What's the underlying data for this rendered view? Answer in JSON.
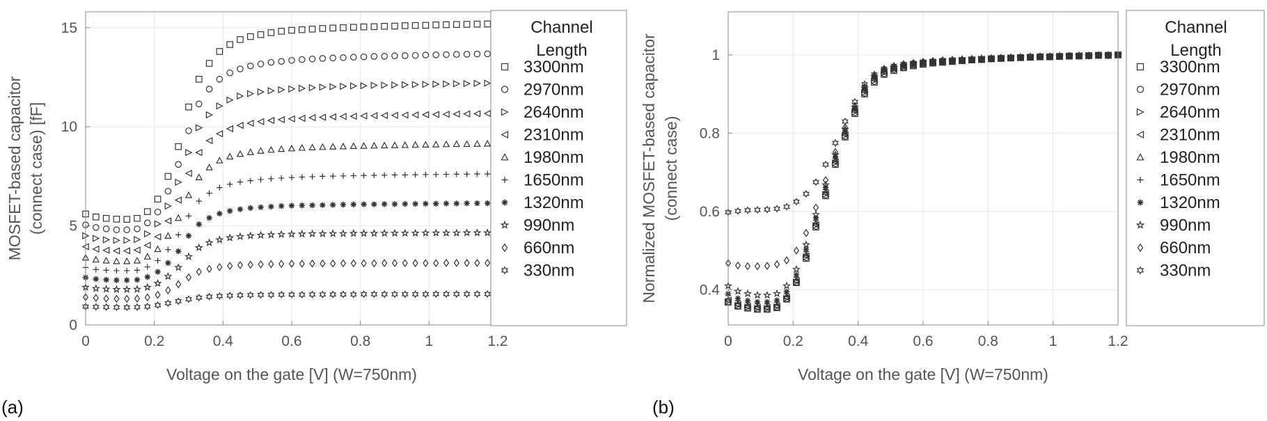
{
  "panels": [
    {
      "label": "(a)"
    },
    {
      "label": "(b)"
    }
  ],
  "legend": {
    "title_line1": "Channel",
    "title_line2": "Length",
    "markers": [
      "square",
      "circle",
      "triangle-right",
      "triangle-left",
      "triangle-up",
      "plus",
      "asterisk",
      "star",
      "diamond",
      "hexagram"
    ]
  },
  "colors": {
    "marker": "#333333",
    "grid": "#e6e6e6",
    "axis": "#888888",
    "text": "#555555"
  },
  "chart_data": [
    {
      "type": "scatter",
      "xlabel": "Voltage on the gate [V] (W=750nm)",
      "ylabel_line1": "MOSFET-based capacitor",
      "ylabel_line2": "(connect case) [fF]",
      "xlim": [
        0,
        1.2
      ],
      "ylim": [
        0,
        15.8
      ],
      "xticks": [
        "0",
        "0.2",
        "0.4",
        "0.6",
        "0.8",
        "1",
        "1.2"
      ],
      "yticks": [
        "0",
        "5",
        "10",
        "15"
      ],
      "xtick_values": [
        0,
        0.2,
        0.4,
        0.6,
        0.8,
        1,
        1.2
      ],
      "ytick_values": [
        0,
        5,
        10,
        15
      ],
      "grid": true,
      "legend_position": "right",
      "x": [
        0,
        0.03,
        0.06,
        0.09,
        0.12,
        0.15,
        0.18,
        0.21,
        0.24,
        0.27,
        0.3,
        0.33,
        0.36,
        0.39,
        0.42,
        0.45,
        0.48,
        0.51,
        0.54,
        0.57,
        0.6,
        0.63,
        0.66,
        0.69,
        0.72,
        0.75,
        0.78,
        0.81,
        0.84,
        0.87,
        0.9,
        0.93,
        0.96,
        0.99,
        1.02,
        1.05,
        1.08,
        1.11,
        1.14,
        1.17,
        1.2
      ],
      "series": [
        {
          "name": "3300nm",
          "values": [
            5.6,
            5.45,
            5.38,
            5.34,
            5.33,
            5.38,
            5.72,
            6.35,
            7.5,
            9.0,
            11.0,
            12.4,
            13.2,
            13.8,
            14.15,
            14.4,
            14.55,
            14.65,
            14.75,
            14.82,
            14.87,
            14.9,
            14.93,
            14.96,
            14.98,
            15.0,
            15.02,
            15.04,
            15.05,
            15.07,
            15.08,
            15.1,
            15.11,
            15.12,
            15.14,
            15.15,
            15.16,
            15.17,
            15.18,
            15.19,
            15.2
          ]
        },
        {
          "name": "2970nm",
          "values": [
            5.05,
            4.92,
            4.85,
            4.8,
            4.8,
            4.85,
            5.15,
            5.7,
            6.75,
            8.1,
            9.8,
            11.15,
            11.9,
            12.4,
            12.72,
            12.92,
            13.07,
            13.17,
            13.25,
            13.3,
            13.35,
            13.39,
            13.42,
            13.45,
            13.47,
            13.49,
            13.51,
            13.53,
            13.55,
            13.56,
            13.58,
            13.59,
            13.6,
            13.62,
            13.63,
            13.64,
            13.65,
            13.66,
            13.67,
            13.68,
            13.7
          ]
        },
        {
          "name": "2640nm",
          "values": [
            4.5,
            4.37,
            4.3,
            4.27,
            4.27,
            4.31,
            4.6,
            5.1,
            6.0,
            7.2,
            8.7,
            9.95,
            10.6,
            11.05,
            11.35,
            11.55,
            11.67,
            11.76,
            11.82,
            11.87,
            11.91,
            11.94,
            11.97,
            12.0,
            12.02,
            12.04,
            12.06,
            12.07,
            12.09,
            12.1,
            12.11,
            12.12,
            12.13,
            12.14,
            12.15,
            12.16,
            12.17,
            12.18,
            12.19,
            12.2,
            12.2
          ]
        },
        {
          "name": "2310nm",
          "values": [
            3.95,
            3.83,
            3.77,
            3.74,
            3.74,
            3.78,
            4.02,
            4.45,
            5.25,
            6.3,
            7.65,
            8.7,
            9.3,
            9.65,
            9.9,
            10.07,
            10.18,
            10.26,
            10.32,
            10.36,
            10.4,
            10.43,
            10.46,
            10.48,
            10.5,
            10.52,
            10.53,
            10.55,
            10.56,
            10.57,
            10.58,
            10.59,
            10.6,
            10.61,
            10.62,
            10.63,
            10.64,
            10.65,
            10.66,
            10.67,
            10.68
          ]
        },
        {
          "name": "1980nm",
          "values": [
            3.4,
            3.3,
            3.25,
            3.22,
            3.22,
            3.25,
            3.45,
            3.83,
            4.5,
            5.4,
            6.55,
            7.45,
            7.95,
            8.3,
            8.5,
            8.63,
            8.72,
            8.79,
            8.84,
            8.88,
            8.91,
            8.94,
            8.96,
            8.98,
            9.0,
            9.01,
            9.03,
            9.04,
            9.05,
            9.06,
            9.07,
            9.08,
            9.09,
            9.1,
            9.11,
            9.12,
            9.13,
            9.13,
            9.14,
            9.15,
            9.15
          ]
        },
        {
          "name": "1650nm",
          "values": [
            2.9,
            2.8,
            2.76,
            2.74,
            2.74,
            2.76,
            2.93,
            3.25,
            3.8,
            4.55,
            5.5,
            6.25,
            6.65,
            6.93,
            7.1,
            7.21,
            7.28,
            7.34,
            7.38,
            7.41,
            7.44,
            7.46,
            7.48,
            7.5,
            7.51,
            7.52,
            7.53,
            7.54,
            7.55,
            7.56,
            7.57,
            7.57,
            7.58,
            7.59,
            7.59,
            7.6,
            7.61,
            7.61,
            7.62,
            7.62,
            7.63
          ]
        },
        {
          "name": "1320nm",
          "values": [
            2.4,
            2.32,
            2.28,
            2.26,
            2.26,
            2.28,
            2.42,
            2.68,
            3.13,
            3.72,
            4.5,
            5.08,
            5.4,
            5.62,
            5.75,
            5.84,
            5.9,
            5.94,
            5.97,
            6.0,
            6.02,
            6.03,
            6.04,
            6.05,
            6.06,
            6.07,
            6.08,
            6.09,
            6.09,
            6.1,
            6.1,
            6.11,
            6.11,
            6.12,
            6.12,
            6.13,
            6.13,
            6.14,
            6.14,
            6.14,
            6.15
          ]
        },
        {
          "name": "990nm",
          "values": [
            1.9,
            1.84,
            1.81,
            1.79,
            1.79,
            1.8,
            1.9,
            2.1,
            2.45,
            2.9,
            3.45,
            3.9,
            4.15,
            4.3,
            4.4,
            4.46,
            4.5,
            4.53,
            4.55,
            4.57,
            4.58,
            4.59,
            4.6,
            4.6,
            4.61,
            4.61,
            4.62,
            4.62,
            4.62,
            4.63,
            4.63,
            4.63,
            4.63,
            4.64,
            4.64,
            4.64,
            4.64,
            4.65,
            4.65,
            4.65,
            4.65
          ]
        },
        {
          "name": "660nm",
          "values": [
            1.4,
            1.36,
            1.33,
            1.32,
            1.32,
            1.33,
            1.39,
            1.52,
            1.75,
            2.05,
            2.4,
            2.68,
            2.83,
            2.92,
            2.98,
            3.02,
            3.04,
            3.06,
            3.07,
            3.08,
            3.09,
            3.09,
            3.1,
            3.1,
            3.1,
            3.11,
            3.11,
            3.11,
            3.11,
            3.12,
            3.12,
            3.12,
            3.12,
            3.12,
            3.12,
            3.13,
            3.13,
            3.13,
            3.13,
            3.13,
            3.13
          ]
        },
        {
          "name": "330nm",
          "values": [
            0.93,
            0.91,
            0.9,
            0.89,
            0.89,
            0.9,
            0.93,
            1.0,
            1.1,
            1.2,
            1.3,
            1.38,
            1.43,
            1.46,
            1.48,
            1.5,
            1.51,
            1.52,
            1.52,
            1.53,
            1.53,
            1.53,
            1.54,
            1.54,
            1.54,
            1.54,
            1.54,
            1.55,
            1.55,
            1.55,
            1.55,
            1.55,
            1.55,
            1.55,
            1.56,
            1.56,
            1.56,
            1.56,
            1.56,
            1.56,
            1.56
          ]
        }
      ]
    },
    {
      "type": "scatter",
      "xlabel": "Voltage on the gate [V] (W=750nm)",
      "ylabel_line1": "Normalized MOSFET-based capacitor",
      "ylabel_line2": "(connect case)",
      "xlim": [
        0,
        1.2
      ],
      "ylim": [
        0.31,
        1.11
      ],
      "xticks": [
        "0",
        "0.2",
        "0.4",
        "0.6",
        "0.8",
        "1",
        "1.2"
      ],
      "yticks": [
        "0.4",
        "0.6",
        "0.8",
        "1"
      ],
      "xtick_values": [
        0,
        0.2,
        0.4,
        0.6,
        0.8,
        1,
        1.2
      ],
      "ytick_values": [
        0.4,
        0.6,
        0.8,
        1
      ],
      "grid": true,
      "legend_position": "right",
      "x": [
        0,
        0.03,
        0.06,
        0.09,
        0.12,
        0.15,
        0.18,
        0.21,
        0.24,
        0.27,
        0.3,
        0.33,
        0.36,
        0.39,
        0.42,
        0.45,
        0.48,
        0.51,
        0.54,
        0.57,
        0.6,
        0.63,
        0.66,
        0.69,
        0.72,
        0.75,
        0.78,
        0.81,
        0.84,
        0.87,
        0.9,
        0.93,
        0.96,
        0.99,
        1.02,
        1.05,
        1.08,
        1.11,
        1.14,
        1.17,
        1.2
      ],
      "series": [
        {
          "name": "3300nm",
          "values": [
            0.368,
            0.358,
            0.353,
            0.35,
            0.35,
            0.354,
            0.376,
            0.418,
            0.48,
            0.56,
            0.64,
            0.72,
            0.79,
            0.85,
            0.9,
            0.93,
            0.95,
            0.96,
            0.967,
            0.972,
            0.976,
            0.979,
            0.981,
            0.983,
            0.985,
            0.987,
            0.988,
            0.99,
            0.991,
            0.992,
            0.993,
            0.994,
            0.995,
            0.995,
            0.996,
            0.997,
            0.997,
            0.998,
            0.999,
            0.999,
            1.0
          ]
        },
        {
          "name": "2970nm",
          "values": [
            0.369,
            0.359,
            0.354,
            0.351,
            0.351,
            0.355,
            0.377,
            0.419,
            0.482,
            0.562,
            0.642,
            0.722,
            0.792,
            0.852,
            0.902,
            0.932,
            0.952,
            0.962,
            0.968,
            0.973,
            0.977,
            0.98,
            0.982,
            0.984,
            0.986,
            0.987,
            0.989,
            0.99,
            0.991,
            0.992,
            0.993,
            0.994,
            0.995,
            0.995,
            0.996,
            0.997,
            0.997,
            0.998,
            0.999,
            0.999,
            1.0
          ]
        },
        {
          "name": "2640nm",
          "values": [
            0.37,
            0.36,
            0.355,
            0.352,
            0.352,
            0.356,
            0.378,
            0.42,
            0.484,
            0.564,
            0.644,
            0.724,
            0.794,
            0.854,
            0.904,
            0.934,
            0.954,
            0.963,
            0.969,
            0.974,
            0.977,
            0.98,
            0.982,
            0.984,
            0.986,
            0.987,
            0.989,
            0.99,
            0.991,
            0.992,
            0.993,
            0.994,
            0.995,
            0.995,
            0.996,
            0.997,
            0.997,
            0.998,
            0.999,
            0.999,
            1.0
          ]
        },
        {
          "name": "2310nm",
          "values": [
            0.373,
            0.362,
            0.357,
            0.354,
            0.354,
            0.358,
            0.38,
            0.422,
            0.486,
            0.566,
            0.646,
            0.726,
            0.796,
            0.856,
            0.906,
            0.936,
            0.956,
            0.964,
            0.97,
            0.974,
            0.978,
            0.981,
            0.983,
            0.985,
            0.986,
            0.988,
            0.989,
            0.99,
            0.991,
            0.992,
            0.993,
            0.994,
            0.995,
            0.996,
            0.996,
            0.997,
            0.998,
            0.998,
            0.999,
            0.999,
            1.0
          ]
        },
        {
          "name": "1980nm",
          "values": [
            0.375,
            0.365,
            0.36,
            0.357,
            0.357,
            0.361,
            0.383,
            0.425,
            0.49,
            0.57,
            0.65,
            0.73,
            0.8,
            0.86,
            0.91,
            0.94,
            0.958,
            0.966,
            0.971,
            0.975,
            0.979,
            0.981,
            0.983,
            0.985,
            0.987,
            0.988,
            0.989,
            0.991,
            0.992,
            0.993,
            0.993,
            0.994,
            0.995,
            0.996,
            0.996,
            0.997,
            0.998,
            0.998,
            0.999,
            0.999,
            1.0
          ]
        },
        {
          "name": "1650nm",
          "values": [
            0.385,
            0.372,
            0.367,
            0.364,
            0.364,
            0.368,
            0.39,
            0.432,
            0.497,
            0.577,
            0.656,
            0.735,
            0.803,
            0.862,
            0.911,
            0.941,
            0.959,
            0.967,
            0.972,
            0.976,
            0.979,
            0.982,
            0.984,
            0.985,
            0.987,
            0.988,
            0.99,
            0.991,
            0.992,
            0.993,
            0.994,
            0.994,
            0.995,
            0.996,
            0.996,
            0.997,
            0.998,
            0.998,
            0.999,
            0.999,
            1.0
          ]
        },
        {
          "name": "1320nm",
          "values": [
            0.39,
            0.378,
            0.372,
            0.369,
            0.369,
            0.373,
            0.395,
            0.438,
            0.503,
            0.583,
            0.662,
            0.74,
            0.807,
            0.864,
            0.913,
            0.943,
            0.96,
            0.968,
            0.973,
            0.977,
            0.98,
            0.982,
            0.984,
            0.986,
            0.987,
            0.989,
            0.99,
            0.991,
            0.992,
            0.993,
            0.994,
            0.995,
            0.995,
            0.996,
            0.997,
            0.997,
            0.998,
            0.998,
            0.999,
            0.999,
            1.0
          ]
        },
        {
          "name": "990nm",
          "values": [
            0.41,
            0.396,
            0.39,
            0.386,
            0.386,
            0.39,
            0.41,
            0.452,
            0.515,
            0.592,
            0.668,
            0.745,
            0.81,
            0.866,
            0.915,
            0.945,
            0.962,
            0.969,
            0.974,
            0.978,
            0.981,
            0.983,
            0.985,
            0.986,
            0.988,
            0.989,
            0.99,
            0.991,
            0.992,
            0.993,
            0.994,
            0.995,
            0.995,
            0.996,
            0.997,
            0.997,
            0.998,
            0.998,
            0.999,
            0.999,
            1.0
          ]
        },
        {
          "name": "660nm",
          "values": [
            0.468,
            0.462,
            0.46,
            0.46,
            0.461,
            0.465,
            0.475,
            0.5,
            0.545,
            0.61,
            0.68,
            0.752,
            0.815,
            0.87,
            0.918,
            0.946,
            0.963,
            0.97,
            0.975,
            0.979,
            0.982,
            0.984,
            0.985,
            0.987,
            0.988,
            0.989,
            0.99,
            0.991,
            0.992,
            0.993,
            0.994,
            0.995,
            0.996,
            0.996,
            0.997,
            0.997,
            0.998,
            0.998,
            0.999,
            0.999,
            1.0
          ]
        },
        {
          "name": "330nm",
          "values": [
            0.598,
            0.601,
            0.603,
            0.604,
            0.605,
            0.607,
            0.612,
            0.625,
            0.645,
            0.675,
            0.72,
            0.775,
            0.83,
            0.88,
            0.925,
            0.95,
            0.965,
            0.972,
            0.977,
            0.98,
            0.983,
            0.985,
            0.987,
            0.988,
            0.989,
            0.99,
            0.991,
            0.992,
            0.993,
            0.994,
            0.994,
            0.995,
            0.996,
            0.996,
            0.997,
            0.997,
            0.998,
            0.998,
            0.999,
            0.999,
            1.0
          ]
        }
      ]
    }
  ]
}
